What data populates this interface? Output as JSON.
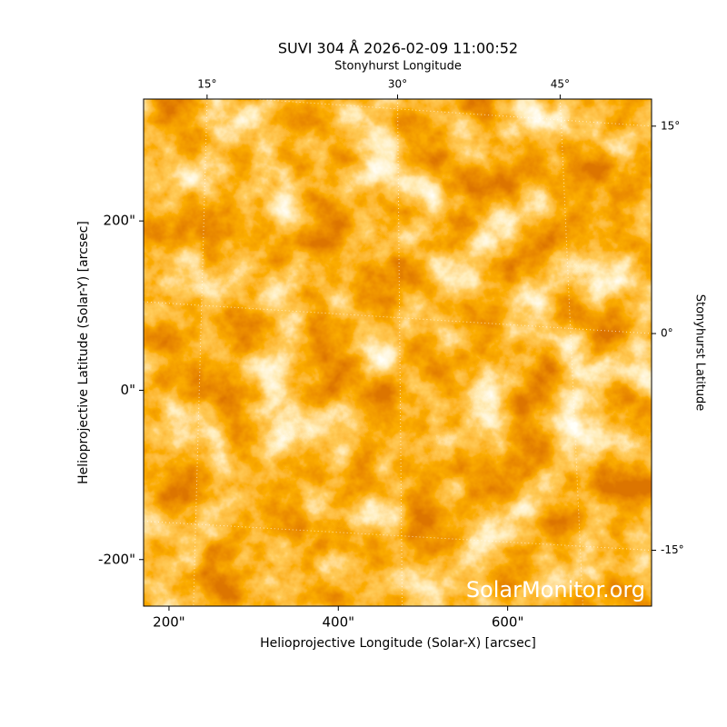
{
  "chart_data": {
    "type": "image",
    "title": "SUVI 304 Å 2026-02-09 11:00:52",
    "x_label": "Helioprojective Longitude (Solar-X) [arcsec]",
    "y_label": "Helioprojective Latitude (Solar-Y) [arcsec]",
    "x2_label": "Stonyhurst Longitude",
    "y2_label": "Stonyhurst Latitude",
    "watermark": "SolarMonitor.org",
    "xlim": [
      170,
      770
    ],
    "ylim": [
      -255,
      344
    ],
    "xticks": [
      {
        "value": 200,
        "label": "200\""
      },
      {
        "value": 400,
        "label": "400\""
      },
      {
        "value": 600,
        "label": "600\""
      }
    ],
    "yticks": [
      {
        "value": 200,
        "label": "200\""
      },
      {
        "value": 0,
        "label": "0\""
      },
      {
        "value": -200,
        "label": "-200\""
      }
    ],
    "x2ticks": [
      {
        "value": 245,
        "label": "15°"
      },
      {
        "value": 470,
        "label": "30°"
      },
      {
        "value": 662,
        "label": "45°"
      }
    ],
    "y2ticks": [
      {
        "value": 312,
        "label": "15°"
      },
      {
        "value": 67,
        "label": "0°"
      },
      {
        "value": -189,
        "label": "-15°"
      }
    ],
    "grid": true
  }
}
